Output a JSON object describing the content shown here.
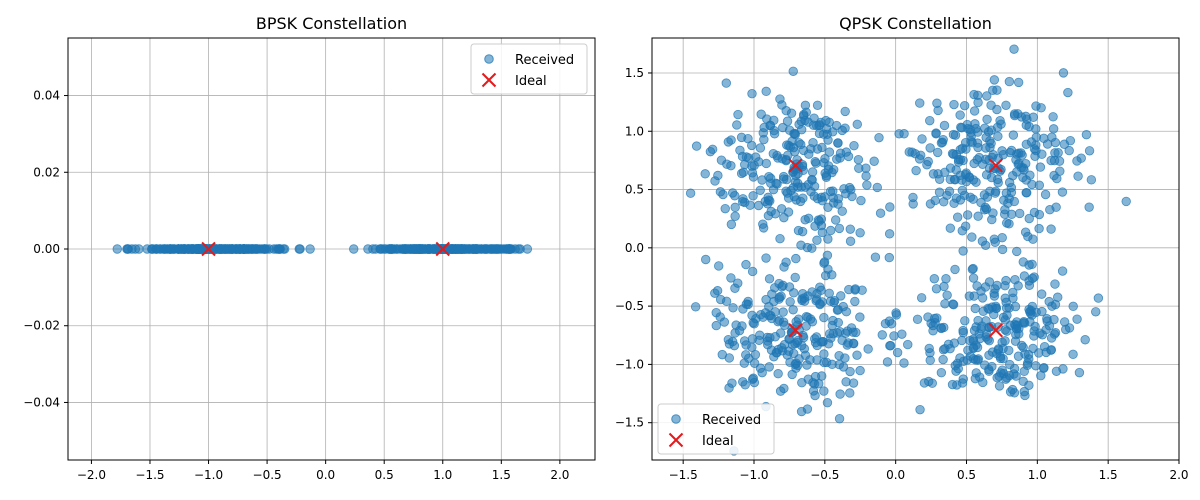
{
  "chart_data": [
    {
      "type": "scatter",
      "title": "BPSK Constellation",
      "xlabel": "",
      "ylabel": "",
      "xlim": [
        -2.2,
        2.3
      ],
      "ylim": [
        -0.055,
        0.055
      ],
      "xticks": [
        -2.0,
        -1.5,
        -1.0,
        -0.5,
        0.0,
        0.5,
        1.0,
        1.5,
        2.0
      ],
      "xtick_labels": [
        "−2.0",
        "−1.5",
        "−1.0",
        "−0.5",
        "0.0",
        "0.5",
        "1.0",
        "1.5",
        "2.0"
      ],
      "yticks": [
        -0.04,
        -0.02,
        0.0,
        0.02,
        0.04
      ],
      "ytick_labels": [
        "−0.04",
        "−0.02",
        "0.00",
        "0.02",
        "0.04"
      ],
      "grid": true,
      "legend": {
        "placement": "top-right",
        "entries": [
          "Received",
          "Ideal"
        ]
      },
      "series": [
        {
          "name": "Received",
          "marker": "circle",
          "color": "#1f77b4",
          "generator": {
            "clusters": [
              -1.0,
              1.0
            ],
            "sigma": 0.3,
            "count": 500,
            "y": 0,
            "xrange_observed": [
              -2.0,
              2.08
            ]
          }
        },
        {
          "name": "Ideal",
          "marker": "x",
          "color": "#e41a1c",
          "points": [
            [
              -1,
              0
            ],
            [
              1,
              0
            ]
          ]
        }
      ]
    },
    {
      "type": "scatter",
      "title": "QPSK Constellation",
      "xlabel": "",
      "ylabel": "",
      "xlim": [
        -1.72,
        2.0
      ],
      "ylim": [
        -1.82,
        1.8
      ],
      "xticks": [
        -1.5,
        -1.0,
        -0.5,
        0.0,
        0.5,
        1.0,
        1.5,
        2.0
      ],
      "xtick_labels": [
        "−1.5",
        "−1.0",
        "−0.5",
        "0.0",
        "0.5",
        "1.0",
        "1.5",
        "2.0"
      ],
      "yticks": [
        -1.5,
        -1.0,
        -0.5,
        0.0,
        0.5,
        1.0,
        1.5
      ],
      "ytick_labels": [
        "−1.5",
        "−1.0",
        "−0.5",
        "0.0",
        "0.5",
        "1.0",
        "1.5"
      ],
      "grid": true,
      "legend": {
        "placement": "bottom-left",
        "entries": [
          "Received",
          "Ideal"
        ]
      },
      "series": [
        {
          "name": "Received",
          "marker": "circle",
          "color": "#1f77b4",
          "generator": {
            "clusters": [
              [
                0.707,
                0.707
              ],
              [
                -0.707,
                0.707
              ],
              [
                -0.707,
                -0.707
              ],
              [
                0.707,
                -0.707
              ]
            ],
            "sigma": 0.3,
            "count": 1000
          }
        },
        {
          "name": "Ideal",
          "marker": "x",
          "color": "#e41a1c",
          "points": [
            [
              0.707,
              0.707
            ],
            [
              -0.707,
              0.707
            ],
            [
              -0.707,
              -0.707
            ],
            [
              0.707,
              -0.707
            ]
          ]
        }
      ]
    }
  ]
}
